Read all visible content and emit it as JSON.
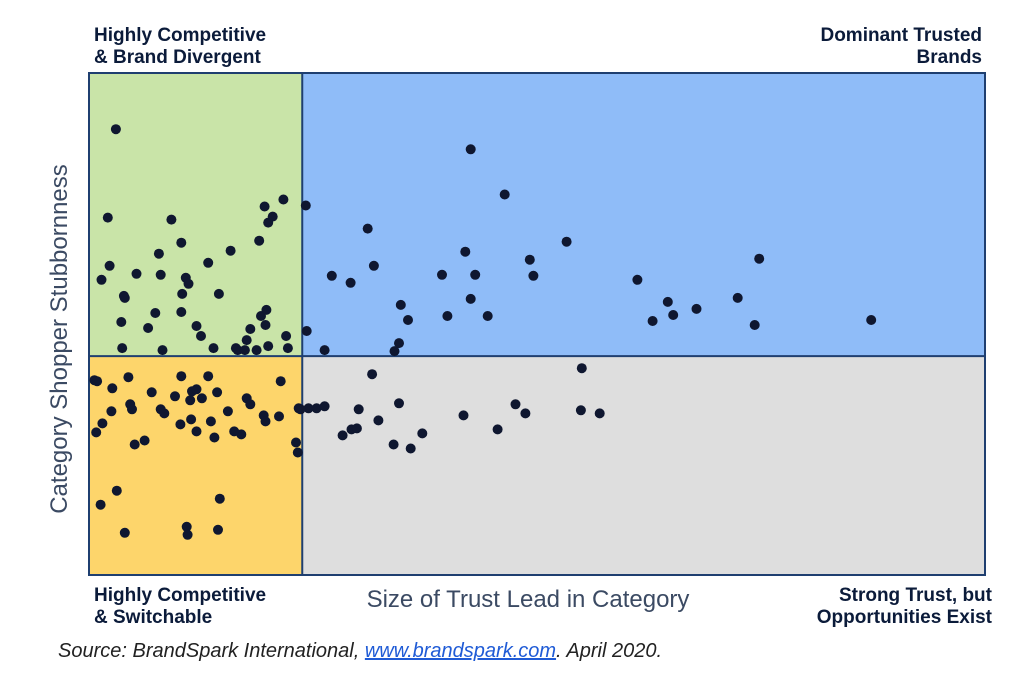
{
  "quadrants": {
    "top_left": [
      "Highly Competitive",
      "& Brand Divergent"
    ],
    "top_right": [
      "Dominant Trusted",
      "Brands"
    ],
    "bottom_left": [
      "Highly Competitive",
      "& Switchable"
    ],
    "bottom_right": [
      "Strong Trust, but",
      "Opportunities Exist"
    ]
  },
  "source": {
    "prefix": "Source: BrandSpark International, ",
    "link": "www.brandspark.com",
    "suffix": ". April 2020."
  },
  "colors": {
    "top_left": "#c9e4a8",
    "top_right": "#8fbcf8",
    "bottom_left": "#fdd56b",
    "bottom_right": "#dedede",
    "border": "#1f3f70",
    "point": "#0f1730"
  },
  "chart_data": {
    "type": "scatter",
    "title": "",
    "xlabel": "Size of Trust Lead in Category",
    "ylabel": "Category Shopper Stubbornness",
    "xlim": [
      0,
      100
    ],
    "ylim": [
      0,
      100
    ],
    "divider": {
      "x": 23.8,
      "y": 43.6
    },
    "grid": false,
    "points": [
      [
        3.0,
        88.8
      ],
      [
        2.1,
        71.2
      ],
      [
        2.3,
        61.6
      ],
      [
        1.4,
        58.8
      ],
      [
        3.6,
        50.4
      ],
      [
        4.0,
        55.2
      ],
      [
        3.9,
        55.6
      ],
      [
        3.7,
        45.2
      ],
      [
        5.3,
        60.0
      ],
      [
        6.6,
        49.2
      ],
      [
        7.4,
        52.2
      ],
      [
        7.8,
        64.0
      ],
      [
        9.2,
        70.8
      ],
      [
        8.0,
        59.8
      ],
      [
        10.3,
        66.2
      ],
      [
        10.4,
        56.0
      ],
      [
        10.8,
        59.2
      ],
      [
        10.3,
        52.4
      ],
      [
        11.1,
        58.0
      ],
      [
        8.2,
        44.8
      ],
      [
        12.0,
        49.6
      ],
      [
        12.5,
        47.6
      ],
      [
        13.3,
        62.2
      ],
      [
        14.5,
        56.0
      ],
      [
        13.9,
        45.2
      ],
      [
        15.8,
        64.6
      ],
      [
        16.4,
        45.2
      ],
      [
        16.6,
        44.8
      ],
      [
        17.4,
        44.8
      ],
      [
        18.0,
        49.0
      ],
      [
        17.6,
        46.8
      ],
      [
        19.7,
        49.8
      ],
      [
        18.7,
        44.8
      ],
      [
        19.2,
        51.6
      ],
      [
        20.0,
        45.6
      ],
      [
        21.7,
        74.8
      ],
      [
        24.2,
        73.6
      ],
      [
        19.8,
        52.8
      ],
      [
        22.0,
        47.6
      ],
      [
        19.6,
        73.4
      ],
      [
        20.0,
        70.2
      ],
      [
        19.0,
        66.6
      ],
      [
        22.2,
        45.2
      ],
      [
        20.5,
        71.4
      ],
      [
        0.6,
        38.8
      ],
      [
        0.9,
        38.6
      ],
      [
        2.6,
        37.2
      ],
      [
        4.4,
        39.4
      ],
      [
        0.8,
        28.4
      ],
      [
        1.5,
        30.2
      ],
      [
        2.5,
        32.6
      ],
      [
        4.6,
        34.0
      ],
      [
        5.1,
        26.0
      ],
      [
        7.0,
        36.4
      ],
      [
        4.8,
        33.0
      ],
      [
        6.2,
        26.8
      ],
      [
        8.4,
        32.2
      ],
      [
        9.6,
        35.6
      ],
      [
        8.0,
        33.0
      ],
      [
        10.3,
        39.6
      ],
      [
        11.3,
        34.8
      ],
      [
        11.5,
        36.6
      ],
      [
        12.6,
        35.2
      ],
      [
        13.3,
        39.6
      ],
      [
        14.3,
        36.4
      ],
      [
        11.4,
        31.0
      ],
      [
        10.2,
        30.0
      ],
      [
        12.0,
        28.6
      ],
      [
        14.0,
        27.4
      ],
      [
        13.6,
        30.6
      ],
      [
        15.5,
        32.6
      ],
      [
        17.0,
        28.0
      ],
      [
        17.6,
        35.2
      ],
      [
        18.0,
        34.0
      ],
      [
        16.2,
        28.6
      ],
      [
        19.5,
        31.8
      ],
      [
        19.7,
        30.6
      ],
      [
        21.2,
        31.6
      ],
      [
        23.4,
        33.2
      ],
      [
        21.4,
        38.6
      ],
      [
        23.1,
        26.4
      ],
      [
        23.3,
        24.4
      ],
      [
        3.1,
        16.8
      ],
      [
        1.3,
        14.0
      ],
      [
        4.0,
        8.4
      ],
      [
        10.9,
        9.6
      ],
      [
        11.0,
        8.0
      ],
      [
        14.6,
        15.2
      ],
      [
        14.4,
        9.0
      ],
      [
        12.0,
        37.0
      ],
      [
        25.4,
        33.2
      ],
      [
        24.5,
        33.2
      ],
      [
        23.6,
        33.0
      ],
      [
        26.3,
        33.6
      ],
      [
        29.3,
        29.0
      ],
      [
        30.1,
        33.0
      ],
      [
        28.3,
        27.8
      ],
      [
        29.9,
        29.2
      ],
      [
        32.3,
        30.8
      ],
      [
        34.6,
        34.2
      ],
      [
        34.0,
        26.0
      ],
      [
        35.9,
        25.2
      ],
      [
        37.2,
        28.2
      ],
      [
        31.6,
        40.0
      ],
      [
        24.3,
        48.6
      ],
      [
        26.3,
        44.8
      ],
      [
        27.1,
        59.6
      ],
      [
        29.2,
        58.2
      ],
      [
        31.1,
        69.0
      ],
      [
        31.8,
        61.6
      ],
      [
        34.1,
        44.6
      ],
      [
        34.6,
        46.2
      ],
      [
        34.8,
        53.8
      ],
      [
        35.6,
        50.8
      ],
      [
        39.4,
        59.8
      ],
      [
        40.0,
        51.6
      ],
      [
        42.0,
        64.4
      ],
      [
        42.6,
        84.8
      ],
      [
        43.1,
        59.8
      ],
      [
        42.6,
        55.0
      ],
      [
        44.5,
        51.6
      ],
      [
        46.4,
        75.8
      ],
      [
        49.2,
        62.8
      ],
      [
        49.6,
        59.6
      ],
      [
        53.3,
        66.4
      ],
      [
        41.8,
        31.8
      ],
      [
        45.6,
        29.0
      ],
      [
        47.6,
        34.0
      ],
      [
        48.7,
        32.2
      ],
      [
        55.0,
        41.2
      ],
      [
        54.9,
        32.8
      ],
      [
        57.0,
        32.2
      ],
      [
        61.2,
        58.8
      ],
      [
        62.9,
        50.6
      ],
      [
        64.6,
        54.4
      ],
      [
        65.2,
        51.8
      ],
      [
        67.8,
        53.0
      ],
      [
        72.4,
        55.2
      ],
      [
        74.3,
        49.8
      ],
      [
        74.8,
        63.0
      ],
      [
        87.3,
        50.8
      ]
    ]
  }
}
